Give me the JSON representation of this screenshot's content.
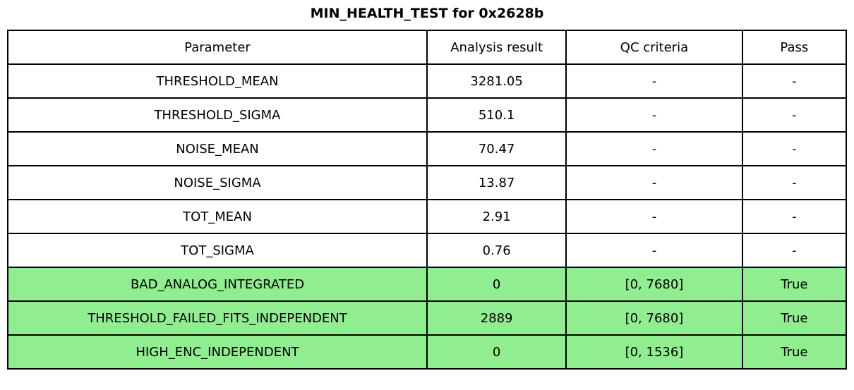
{
  "title": "MIN_HEALTH_TEST for 0x2628b",
  "colors": {
    "pass_green": "#90EE90",
    "border": "#000000",
    "background": "#ffffff"
  },
  "table": {
    "columns": [
      "Parameter",
      "Analysis result",
      "QC criteria",
      "Pass"
    ],
    "rows": [
      {
        "parameter": "THRESHOLD_MEAN",
        "analysis_result": "3281.05",
        "qc_criteria": "-",
        "pass": "-",
        "highlight": false
      },
      {
        "parameter": "THRESHOLD_SIGMA",
        "analysis_result": "510.1",
        "qc_criteria": "-",
        "pass": "-",
        "highlight": false
      },
      {
        "parameter": "NOISE_MEAN",
        "analysis_result": "70.47",
        "qc_criteria": "-",
        "pass": "-",
        "highlight": false
      },
      {
        "parameter": "NOISE_SIGMA",
        "analysis_result": "13.87",
        "qc_criteria": "-",
        "pass": "-",
        "highlight": false
      },
      {
        "parameter": "TOT_MEAN",
        "analysis_result": "2.91",
        "qc_criteria": "-",
        "pass": "-",
        "highlight": false
      },
      {
        "parameter": "TOT_SIGMA",
        "analysis_result": "0.76",
        "qc_criteria": "-",
        "pass": "-",
        "highlight": false
      },
      {
        "parameter": "BAD_ANALOG_INTEGRATED",
        "analysis_result": "0",
        "qc_criteria": "[0, 7680]",
        "pass": "True",
        "highlight": true
      },
      {
        "parameter": "THRESHOLD_FAILED_FITS_INDEPENDENT",
        "analysis_result": "2889",
        "qc_criteria": "[0, 7680]",
        "pass": "True",
        "highlight": true
      },
      {
        "parameter": "HIGH_ENC_INDEPENDENT",
        "analysis_result": "0",
        "qc_criteria": "[0, 1536]",
        "pass": "True",
        "highlight": true
      }
    ]
  }
}
